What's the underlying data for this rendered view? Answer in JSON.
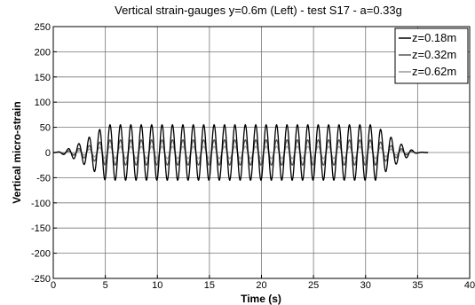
{
  "chart_data": {
    "type": "line",
    "title": "Vertical strain-gauges y=0.6m (Left) - test S17 - a=0.33g",
    "xlabel": "Time (s)",
    "ylabel": "Vertical micro-strain",
    "xlim": [
      0,
      40
    ],
    "ylim": [
      -250,
      250
    ],
    "xticks": [
      "0",
      "5",
      "10",
      "15",
      "20",
      "25",
      "30",
      "35",
      "40"
    ],
    "yticks": [
      "250",
      "200",
      "150",
      "100",
      "50",
      "0",
      "-50",
      "-100",
      "-150",
      "-200",
      "-250"
    ],
    "grid": true,
    "legend_position": "top-right",
    "signal": {
      "t_start": 0,
      "t_end": 36,
      "frequency_hz": 1.0,
      "ramp_up_end": 5,
      "steady_end": 31,
      "ramp_down_end": 35
    },
    "series": [
      {
        "name": "z=0.18m",
        "color": "#000000",
        "peak_amplitude": 55
      },
      {
        "name": "z=0.32m",
        "color": "#555555",
        "peak_amplitude": 25
      },
      {
        "name": "z=0.62m",
        "color": "#999999",
        "peak_amplitude": 12
      }
    ]
  }
}
